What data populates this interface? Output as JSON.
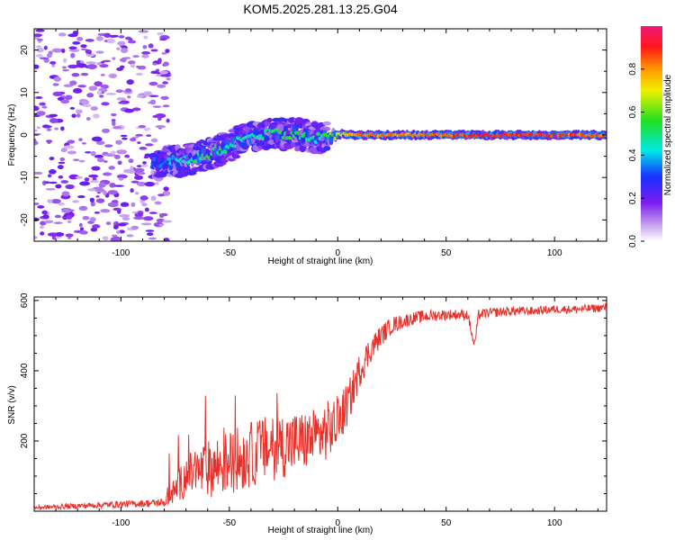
{
  "title": "KOM5.2025.281.13.25.G04",
  "chart_data": [
    {
      "type": "heatmap",
      "xlabel": "Height of straight line (km)",
      "ylabel": "Frequency (Hz)",
      "xlim": [
        -140,
        124
      ],
      "ylim": [
        -25,
        25
      ],
      "x_ticks": [
        -100,
        -50,
        0,
        50,
        100
      ],
      "x_tick_labels": [
        "-100",
        "-50",
        "0",
        "50",
        "100"
      ],
      "y_ticks": [
        -20,
        -10,
        0,
        10,
        20
      ],
      "y_tick_labels": [
        "-20",
        "-10",
        "0",
        "10",
        "20"
      ],
      "colorbar": {
        "label": "Normalized spectral amplitude",
        "range": [
          0,
          1
        ],
        "ticks": [
          0,
          0.2,
          0.4,
          0.6,
          0.8
        ],
        "tick_labels": [
          "0.0",
          "0.2",
          "0.4",
          "0.6",
          "0.8"
        ]
      },
      "ridge": [
        {
          "x": -80,
          "y": -6.5,
          "amp": 0.35
        },
        {
          "x": -70,
          "y": -6.0,
          "amp": 0.45
        },
        {
          "x": -60,
          "y": -4.5,
          "amp": 0.55
        },
        {
          "x": -50,
          "y": -2.5,
          "amp": 0.45
        },
        {
          "x": -40,
          "y": -0.5,
          "amp": 0.45
        },
        {
          "x": -30,
          "y": 0.5,
          "amp": 0.5
        },
        {
          "x": -20,
          "y": 0.3,
          "amp": 0.55
        },
        {
          "x": -10,
          "y": -0.8,
          "amp": 0.45
        },
        {
          "x": 0,
          "y": 0.2,
          "amp": 0.65
        },
        {
          "x": 10,
          "y": 0.0,
          "amp": 0.85
        },
        {
          "x": 30,
          "y": 0.0,
          "amp": 0.8
        },
        {
          "x": 50,
          "y": 0.0,
          "amp": 0.85
        },
        {
          "x": 70,
          "y": 0.0,
          "amp": 0.9
        },
        {
          "x": 90,
          "y": 0.0,
          "amp": 0.9
        },
        {
          "x": 110,
          "y": 0.0,
          "amp": 0.85
        },
        {
          "x": 124,
          "y": 0.0,
          "amp": 0.85
        }
      ]
    },
    {
      "type": "line",
      "xlabel": "Height of straight line (km)",
      "ylabel": "SNR (v/v)",
      "xlim": [
        -140,
        124
      ],
      "ylim": [
        0,
        610
      ],
      "x_ticks": [
        -100,
        -50,
        0,
        50,
        100
      ],
      "x_tick_labels": [
        "-100",
        "-50",
        "0",
        "50",
        "100"
      ],
      "y_ticks": [
        200,
        400,
        600
      ],
      "y_tick_labels": [
        "200",
        "400",
        "600"
      ],
      "series": [
        {
          "name": "SNR",
          "color": "#e8302a",
          "x": [
            -140,
            -120,
            -100,
            -90,
            -80,
            -75,
            -70,
            -65,
            -60,
            -55,
            -50,
            -45,
            -40,
            -35,
            -30,
            -25,
            -20,
            -15,
            -10,
            -5,
            0,
            5,
            10,
            15,
            20,
            25,
            30,
            35,
            40,
            50,
            60,
            63,
            65,
            70,
            80,
            90,
            100,
            110,
            124
          ],
          "y": [
            10,
            15,
            20,
            22,
            25,
            60,
            100,
            110,
            120,
            130,
            140,
            150,
            160,
            175,
            180,
            190,
            195,
            200,
            210,
            230,
            250,
            310,
            400,
            460,
            500,
            530,
            540,
            550,
            555,
            560,
            560,
            470,
            560,
            565,
            570,
            570,
            575,
            575,
            580
          ],
          "noise": [
            6,
            8,
            10,
            10,
            12,
            40,
            60,
            70,
            80,
            90,
            90,
            95,
            95,
            95,
            95,
            95,
            90,
            85,
            85,
            85,
            80,
            60,
            50,
            40,
            30,
            25,
            20,
            18,
            18,
            15,
            15,
            15,
            15,
            14,
            14,
            12,
            12,
            12,
            12
          ]
        }
      ]
    }
  ]
}
